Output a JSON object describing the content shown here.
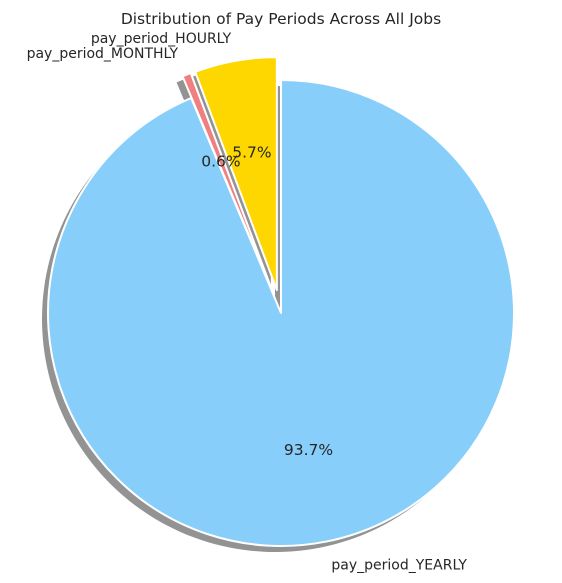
{
  "chart_data": {
    "type": "pie",
    "title": "Distribution of Pay Periods Across All Jobs",
    "slices": [
      {
        "label": "pay_period_HOURLY",
        "value": 5.7,
        "pct_label": "5.7%",
        "color": "#FFD700",
        "exploded": true
      },
      {
        "label": "pay_period_MONTHLY",
        "value": 0.6,
        "pct_label": "0.6%",
        "color": "#F08080",
        "exploded": true
      },
      {
        "label": "pay_period_YEARLY",
        "value": 93.7,
        "pct_label": "93.7%",
        "color": "#87CEFA",
        "exploded": false
      }
    ],
    "start_angle_deg": 90,
    "direction": "counterclockwise",
    "shadow": true,
    "edge_color": "#FFFFFF"
  }
}
